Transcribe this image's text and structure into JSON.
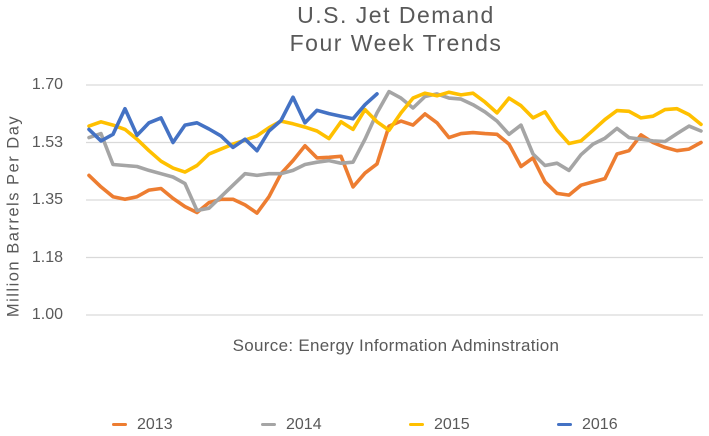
{
  "title": {
    "line1": "U.S. Jet Demand",
    "line2": "Four Week Trends"
  },
  "y_axis": {
    "title": "Million Barrels Per Day",
    "tick_labels": [
      "1.70",
      "1.53",
      "1.35",
      "1.18",
      "1.00"
    ]
  },
  "source_note": "Source: Energy Information Adminstration",
  "legend": {
    "items": [
      {
        "label": "2013",
        "color": "#ED7D31"
      },
      {
        "label": "2014",
        "color": "#A5A5A5"
      },
      {
        "label": "2015",
        "color": "#FFC000"
      },
      {
        "label": "2016",
        "color": "#4472C4"
      }
    ]
  },
  "chart_data": {
    "type": "line",
    "title": "U.S. Jet Demand Four Week Trends",
    "xlabel": "",
    "ylabel": "Million Barrels Per Day",
    "ylim": [
      1.0,
      1.7
    ],
    "y_tick_values": [
      1.7,
      1.525,
      1.35,
      1.175,
      1.0
    ],
    "y_tick_labels": [
      "1.70",
      "1.53",
      "1.35",
      "1.18",
      "1.00"
    ],
    "x_axis_labels_shown": false,
    "weeks_total": 52,
    "grid": "horizontal",
    "gridline_color": "#D9D9D9",
    "legend_position": "bottom",
    "series": [
      {
        "name": "2013",
        "color": "#ED7D31",
        "values": [
          1.425,
          1.39,
          1.36,
          1.352,
          1.36,
          1.38,
          1.385,
          1.355,
          1.33,
          1.312,
          1.342,
          1.352,
          1.352,
          1.335,
          1.31,
          1.36,
          1.43,
          1.47,
          1.515,
          1.478,
          1.48,
          1.483,
          1.39,
          1.432,
          1.46,
          1.575,
          1.59,
          1.578,
          1.612,
          1.585,
          1.54,
          1.552,
          1.555,
          1.552,
          1.55,
          1.52,
          1.452,
          1.478,
          1.405,
          1.37,
          1.365,
          1.395,
          1.405,
          1.415,
          1.49,
          1.5,
          1.548,
          1.525,
          1.51,
          1.5,
          1.505,
          1.525
        ]
      },
      {
        "name": "2014",
        "color": "#A5A5A5",
        "values": [
          1.54,
          1.552,
          1.458,
          1.455,
          1.452,
          1.44,
          1.43,
          1.42,
          1.4,
          1.318,
          1.325,
          1.36,
          1.395,
          1.43,
          1.425,
          1.43,
          1.43,
          1.44,
          1.458,
          1.465,
          1.47,
          1.462,
          1.465,
          1.535,
          1.615,
          1.68,
          1.66,
          1.63,
          1.665,
          1.673,
          1.66,
          1.657,
          1.64,
          1.618,
          1.59,
          1.55,
          1.578,
          1.49,
          1.455,
          1.462,
          1.44,
          1.488,
          1.52,
          1.538,
          1.568,
          1.54,
          1.535,
          1.53,
          1.528,
          1.552,
          1.575,
          1.56
        ]
      },
      {
        "name": "2015",
        "color": "#FFC000",
        "values": [
          1.575,
          1.588,
          1.578,
          1.565,
          1.535,
          1.5,
          1.468,
          1.447,
          1.435,
          1.455,
          1.49,
          1.505,
          1.52,
          1.532,
          1.545,
          1.57,
          1.59,
          1.582,
          1.572,
          1.56,
          1.537,
          1.588,
          1.565,
          1.625,
          1.588,
          1.562,
          1.615,
          1.66,
          1.675,
          1.667,
          1.678,
          1.67,
          1.675,
          1.648,
          1.615,
          1.66,
          1.637,
          1.6,
          1.618,
          1.563,
          1.522,
          1.53,
          1.562,
          1.595,
          1.622,
          1.62,
          1.6,
          1.605,
          1.625,
          1.628,
          1.61,
          1.58
        ]
      },
      {
        "name": "2016",
        "color": "#4472C4",
        "values": [
          1.565,
          1.53,
          1.55,
          1.628,
          1.547,
          1.585,
          1.6,
          1.525,
          1.578,
          1.585,
          1.566,
          1.545,
          1.51,
          1.535,
          1.5,
          1.56,
          1.592,
          1.663,
          1.585,
          1.623,
          1.613,
          1.605,
          1.597,
          1.64,
          1.673
        ]
      }
    ]
  }
}
